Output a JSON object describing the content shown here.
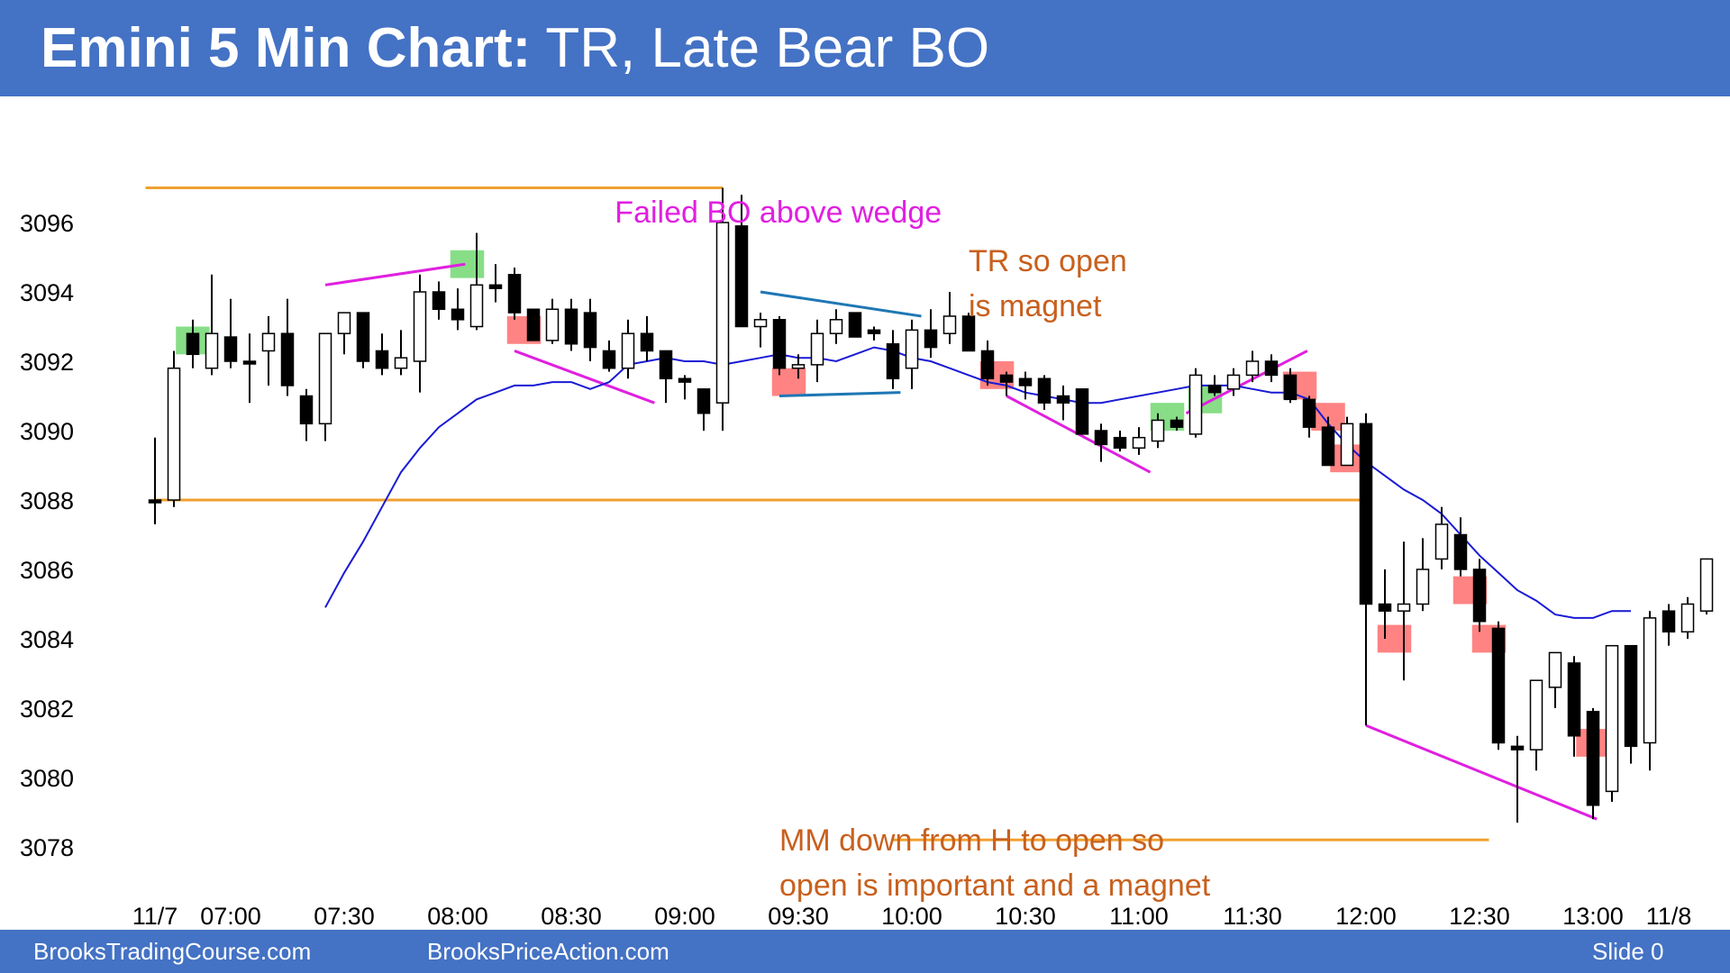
{
  "header": {
    "title_bold": "Emini 5 Min Chart:",
    "title_rest": " TR, Late Bear BO"
  },
  "footer": {
    "left": "BrooksTradingCourse.com",
    "middle": "BrooksPriceAction.com",
    "right": "Slide  0"
  },
  "colors": {
    "header_bg": "#4472c4",
    "bull_highlight": "#5fd35f",
    "bear_highlight": "#ff5a5a",
    "ema": "#1a1ad6",
    "magenta": "#e020e0",
    "orange": "#f0a030",
    "annotation_orange": "#c8601e",
    "teal": "#1f77b4"
  },
  "chart_data": {
    "type": "candlestick",
    "title": "",
    "ylim": [
      3077,
      3097.5
    ],
    "y_ticks": [
      3078,
      3080,
      3082,
      3084,
      3086,
      3088,
      3090,
      3092,
      3094,
      3096
    ],
    "x_tick_labels": [
      "11/7",
      "07:00",
      "07:30",
      "08:00",
      "08:30",
      "09:00",
      "09:30",
      "10:00",
      "10:30",
      "11:00",
      "11:30",
      "12:00",
      "12:30",
      "13:00",
      "11/8"
    ],
    "x_tick_bar_index": [
      0,
      4,
      10,
      16,
      22,
      28,
      34,
      40,
      46,
      52,
      58,
      64,
      70,
      76,
      80
    ],
    "bars": [
      {
        "o": 3088.0,
        "h": 3089.8,
        "l": 3087.3,
        "c": 3088.0
      },
      {
        "o": 3088.0,
        "h": 3092.3,
        "l": 3087.8,
        "c": 3091.8
      },
      {
        "o": 3092.8,
        "h": 3093.2,
        "l": 3091.8,
        "c": 3092.2
      },
      {
        "o": 3091.8,
        "h": 3094.5,
        "l": 3091.6,
        "c": 3092.8
      },
      {
        "o": 3092.7,
        "h": 3093.8,
        "l": 3091.8,
        "c": 3092.0
      },
      {
        "o": 3092.0,
        "h": 3092.8,
        "l": 3090.8,
        "c": 3092.0
      },
      {
        "o": 3092.3,
        "h": 3093.3,
        "l": 3091.3,
        "c": 3092.8
      },
      {
        "o": 3092.8,
        "h": 3093.8,
        "l": 3091.0,
        "c": 3091.3
      },
      {
        "o": 3091.0,
        "h": 3091.2,
        "l": 3089.7,
        "c": 3090.2
      },
      {
        "o": 3090.2,
        "h": 3092.8,
        "l": 3089.7,
        "c": 3092.8
      },
      {
        "o": 3092.8,
        "h": 3093.4,
        "l": 3092.2,
        "c": 3093.4
      },
      {
        "o": 3093.4,
        "h": 3093.4,
        "l": 3091.8,
        "c": 3092.0
      },
      {
        "o": 3092.3,
        "h": 3092.8,
        "l": 3091.6,
        "c": 3091.8
      },
      {
        "o": 3091.8,
        "h": 3092.9,
        "l": 3091.6,
        "c": 3092.1
      },
      {
        "o": 3092.0,
        "h": 3094.5,
        "l": 3091.1,
        "c": 3094.0
      },
      {
        "o": 3094.0,
        "h": 3094.3,
        "l": 3093.2,
        "c": 3093.5
      },
      {
        "o": 3093.5,
        "h": 3094.1,
        "l": 3092.9,
        "c": 3093.2
      },
      {
        "o": 3093.0,
        "h": 3095.7,
        "l": 3092.9,
        "c": 3094.2
      },
      {
        "o": 3094.2,
        "h": 3094.8,
        "l": 3093.7,
        "c": 3094.1
      },
      {
        "o": 3094.5,
        "h": 3094.7,
        "l": 3093.2,
        "c": 3093.4
      },
      {
        "o": 3093.5,
        "h": 3093.5,
        "l": 3092.6,
        "c": 3092.6
      },
      {
        "o": 3092.6,
        "h": 3093.8,
        "l": 3092.5,
        "c": 3093.5
      },
      {
        "o": 3093.5,
        "h": 3093.8,
        "l": 3092.3,
        "c": 3092.5
      },
      {
        "o": 3093.4,
        "h": 3093.8,
        "l": 3092.0,
        "c": 3092.4
      },
      {
        "o": 3092.3,
        "h": 3092.6,
        "l": 3091.7,
        "c": 3091.8
      },
      {
        "o": 3091.8,
        "h": 3093.2,
        "l": 3091.5,
        "c": 3092.8
      },
      {
        "o": 3092.8,
        "h": 3093.3,
        "l": 3092.0,
        "c": 3092.3
      },
      {
        "o": 3092.3,
        "h": 3092.3,
        "l": 3090.8,
        "c": 3091.5
      },
      {
        "o": 3091.5,
        "h": 3091.6,
        "l": 3090.9,
        "c": 3091.4
      },
      {
        "o": 3091.2,
        "h": 3091.2,
        "l": 3090.0,
        "c": 3090.5
      },
      {
        "o": 3090.8,
        "h": 3097.0,
        "l": 3090.0,
        "c": 3096.0
      },
      {
        "o": 3095.9,
        "h": 3096.8,
        "l": 3093.0,
        "c": 3093.0
      },
      {
        "o": 3093.0,
        "h": 3093.4,
        "l": 3092.4,
        "c": 3093.2
      },
      {
        "o": 3093.2,
        "h": 3093.3,
        "l": 3091.6,
        "c": 3091.8
      },
      {
        "o": 3091.8,
        "h": 3092.2,
        "l": 3091.5,
        "c": 3091.9
      },
      {
        "o": 3091.9,
        "h": 3093.2,
        "l": 3091.4,
        "c": 3092.8
      },
      {
        "o": 3092.8,
        "h": 3093.5,
        "l": 3092.5,
        "c": 3093.2
      },
      {
        "o": 3093.4,
        "h": 3093.4,
        "l": 3092.7,
        "c": 3092.7
      },
      {
        "o": 3092.9,
        "h": 3093.0,
        "l": 3092.6,
        "c": 3092.8
      },
      {
        "o": 3092.5,
        "h": 3092.9,
        "l": 3091.2,
        "c": 3091.5
      },
      {
        "o": 3091.8,
        "h": 3093.2,
        "l": 3091.2,
        "c": 3092.9
      },
      {
        "o": 3092.9,
        "h": 3093.5,
        "l": 3092.1,
        "c": 3092.4
      },
      {
        "o": 3092.8,
        "h": 3094.0,
        "l": 3092.5,
        "c": 3093.3
      },
      {
        "o": 3093.3,
        "h": 3093.4,
        "l": 3092.3,
        "c": 3092.3
      },
      {
        "o": 3092.3,
        "h": 3092.6,
        "l": 3091.3,
        "c": 3091.5
      },
      {
        "o": 3091.6,
        "h": 3091.7,
        "l": 3091.0,
        "c": 3091.4
      },
      {
        "o": 3091.5,
        "h": 3091.7,
        "l": 3090.9,
        "c": 3091.3
      },
      {
        "o": 3091.5,
        "h": 3091.6,
        "l": 3090.6,
        "c": 3090.8
      },
      {
        "o": 3091.0,
        "h": 3091.3,
        "l": 3090.3,
        "c": 3090.8
      },
      {
        "o": 3091.2,
        "h": 3091.2,
        "l": 3089.9,
        "c": 3089.9
      },
      {
        "o": 3090.0,
        "h": 3090.2,
        "l": 3089.1,
        "c": 3089.6
      },
      {
        "o": 3089.8,
        "h": 3090.0,
        "l": 3089.4,
        "c": 3089.5
      },
      {
        "o": 3089.5,
        "h": 3090.1,
        "l": 3089.3,
        "c": 3089.8
      },
      {
        "o": 3089.7,
        "h": 3090.5,
        "l": 3089.5,
        "c": 3090.3
      },
      {
        "o": 3090.3,
        "h": 3090.4,
        "l": 3090.0,
        "c": 3090.1
      },
      {
        "o": 3089.9,
        "h": 3091.8,
        "l": 3089.8,
        "c": 3091.6
      },
      {
        "o": 3091.3,
        "h": 3091.6,
        "l": 3091.0,
        "c": 3091.1
      },
      {
        "o": 3091.2,
        "h": 3091.8,
        "l": 3091.0,
        "c": 3091.6
      },
      {
        "o": 3091.6,
        "h": 3092.3,
        "l": 3091.4,
        "c": 3092.0
      },
      {
        "o": 3092.0,
        "h": 3092.2,
        "l": 3091.4,
        "c": 3091.6
      },
      {
        "o": 3091.6,
        "h": 3091.8,
        "l": 3090.8,
        "c": 3090.9
      },
      {
        "o": 3090.9,
        "h": 3091.0,
        "l": 3089.8,
        "c": 3090.1
      },
      {
        "o": 3090.1,
        "h": 3090.4,
        "l": 3089.0,
        "c": 3089.0
      },
      {
        "o": 3089.0,
        "h": 3090.4,
        "l": 3089.0,
        "c": 3090.2
      },
      {
        "o": 3090.2,
        "h": 3090.5,
        "l": 3081.5,
        "c": 3085.0
      },
      {
        "o": 3085.0,
        "h": 3086.0,
        "l": 3084.0,
        "c": 3084.8
      },
      {
        "o": 3084.8,
        "h": 3086.8,
        "l": 3082.8,
        "c": 3085.0
      },
      {
        "o": 3085.0,
        "h": 3086.9,
        "l": 3084.8,
        "c": 3086.0
      },
      {
        "o": 3086.3,
        "h": 3087.8,
        "l": 3086.0,
        "c": 3087.3
      },
      {
        "o": 3087.0,
        "h": 3087.5,
        "l": 3085.8,
        "c": 3086.0
      },
      {
        "o": 3086.0,
        "h": 3086.3,
        "l": 3084.2,
        "c": 3084.5
      },
      {
        "o": 3084.3,
        "h": 3084.5,
        "l": 3080.8,
        "c": 3081.0
      },
      {
        "o": 3080.9,
        "h": 3081.2,
        "l": 3078.7,
        "c": 3080.8
      },
      {
        "o": 3080.8,
        "h": 3082.8,
        "l": 3080.2,
        "c": 3082.8
      },
      {
        "o": 3082.6,
        "h": 3083.6,
        "l": 3082.0,
        "c": 3083.6
      },
      {
        "o": 3083.3,
        "h": 3083.5,
        "l": 3080.6,
        "c": 3081.2
      },
      {
        "o": 3081.9,
        "h": 3082.0,
        "l": 3078.8,
        "c": 3079.2
      },
      {
        "o": 3079.6,
        "h": 3083.8,
        "l": 3079.3,
        "c": 3083.8
      },
      {
        "o": 3083.8,
        "h": 3083.8,
        "l": 3080.4,
        "c": 3080.9
      },
      {
        "o": 3081.0,
        "h": 3084.8,
        "l": 3080.2,
        "c": 3084.6
      },
      {
        "o": 3084.8,
        "h": 3085.0,
        "l": 3083.8,
        "c": 3084.2
      },
      {
        "o": 3084.2,
        "h": 3085.2,
        "l": 3084.0,
        "c": 3085.0
      },
      {
        "o": 3084.8,
        "h": 3086.3,
        "l": 3084.7,
        "c": 3086.3
      }
    ],
    "ema20": {
      "start_index": 9,
      "values": [
        3084.9,
        3085.9,
        3086.8,
        3087.8,
        3088.8,
        3089.5,
        3090.1,
        3090.5,
        3090.9,
        3091.1,
        3091.3,
        3091.3,
        3091.4,
        3091.4,
        3091.2,
        3091.4,
        3091.9,
        3092.0,
        3092.1,
        3092.0,
        3092.0,
        3091.9,
        3092.0,
        3092.1,
        3092.2,
        3092.1,
        3092.1,
        3092.0,
        3092.2,
        3092.4,
        3092.3,
        3092.1,
        3092.0,
        3091.8,
        3091.6,
        3091.4,
        3091.3,
        3091.1,
        3091.0,
        3090.9,
        3090.8,
        3090.8,
        3090.9,
        3091.0,
        3091.1,
        3091.2,
        3091.3,
        3091.3,
        3091.3,
        3091.2,
        3091.1,
        3091.1,
        3090.9,
        3090.2,
        3089.6,
        3089.1,
        3088.7,
        3088.3,
        3088.0,
        3087.6,
        3087.0,
        3086.4,
        3085.9,
        3085.4,
        3085.1,
        3084.7,
        3084.6,
        3084.6,
        3084.8,
        3084.8
      ]
    },
    "horizontal_lines": [
      {
        "y": 3097.0,
        "from_index": -0.5,
        "to_index": 30,
        "color": "orange"
      },
      {
        "y": 3088.0,
        "from_index": 0,
        "to_index": 63.9,
        "color": "orange"
      },
      {
        "y": 3078.2,
        "from_index": 39,
        "to_index": 70.5,
        "color": "orange"
      }
    ],
    "trend_lines": [
      {
        "x1": 9,
        "y1": 3094.2,
        "x2": 16.4,
        "y2": 3094.8,
        "color": "magenta"
      },
      {
        "x1": 19,
        "y1": 3092.3,
        "x2": 26.4,
        "y2": 3090.8,
        "color": "magenta"
      },
      {
        "x1": 45,
        "y1": 3091.0,
        "x2": 52.6,
        "y2": 3088.8,
        "color": "magenta"
      },
      {
        "x1": 54.5,
        "y1": 3090.5,
        "x2": 60.9,
        "y2": 3092.3,
        "color": "magenta"
      },
      {
        "x1": 64,
        "y1": 3081.5,
        "x2": 76.2,
        "y2": 3078.8,
        "color": "magenta"
      },
      {
        "x1": 32,
        "y1": 3094.0,
        "x2": 40.5,
        "y2": 3093.3,
        "color": "teal"
      },
      {
        "x1": 33,
        "y1": 3091.0,
        "x2": 39.4,
        "y2": 3091.1,
        "color": "teal"
      }
    ],
    "highlights": [
      {
        "bar": 2,
        "y_low": 3092.2,
        "y_high": 3093.0,
        "color": "bull",
        "span": 1.5
      },
      {
        "bar": 16.5,
        "y_low": 3094.4,
        "y_high": 3095.2,
        "color": "bull",
        "span": 1.5
      },
      {
        "bar": 19.5,
        "y_low": 3092.5,
        "y_high": 3093.3,
        "color": "bear",
        "span": 1.5
      },
      {
        "bar": 33.5,
        "y_low": 3091.0,
        "y_high": 3091.8,
        "color": "bear",
        "span": 1.5
      },
      {
        "bar": 44.5,
        "y_low": 3091.2,
        "y_high": 3092.0,
        "color": "bear",
        "span": 1.5
      },
      {
        "bar": 53.5,
        "y_low": 3090.0,
        "y_high": 3090.8,
        "color": "bull",
        "span": 1.5
      },
      {
        "bar": 55.5,
        "y_low": 3090.5,
        "y_high": 3091.3,
        "color": "bull",
        "span": 1.5
      },
      {
        "bar": 60.5,
        "y_low": 3090.9,
        "y_high": 3091.7,
        "color": "bear",
        "span": 1.5
      },
      {
        "bar": 62,
        "y_low": 3090.0,
        "y_high": 3090.8,
        "color": "bear",
        "span": 1.5
      },
      {
        "bar": 63,
        "y_low": 3088.8,
        "y_high": 3089.6,
        "color": "bear",
        "span": 1.5
      },
      {
        "bar": 65.5,
        "y_low": 3083.6,
        "y_high": 3084.4,
        "color": "bear",
        "span": 1.5
      },
      {
        "bar": 69.5,
        "y_low": 3085.0,
        "y_high": 3085.8,
        "color": "bear",
        "span": 1.5
      },
      {
        "bar": 70.5,
        "y_low": 3083.6,
        "y_high": 3084.4,
        "color": "bear",
        "span": 1.5
      },
      {
        "bar": 76,
        "y_low": 3080.6,
        "y_high": 3081.4,
        "color": "bear",
        "span": 1.5
      }
    ],
    "annotations": [
      {
        "text": "Failed BO above wedge",
        "color": "magenta"
      },
      {
        "text": "TR so open",
        "color": "annotation_orange"
      },
      {
        "text": "is magnet",
        "color": "annotation_orange"
      },
      {
        "text": "MM down from H to open so",
        "color": "annotation_orange"
      },
      {
        "text": "open is important and a magnet",
        "color": "annotation_orange"
      }
    ]
  }
}
